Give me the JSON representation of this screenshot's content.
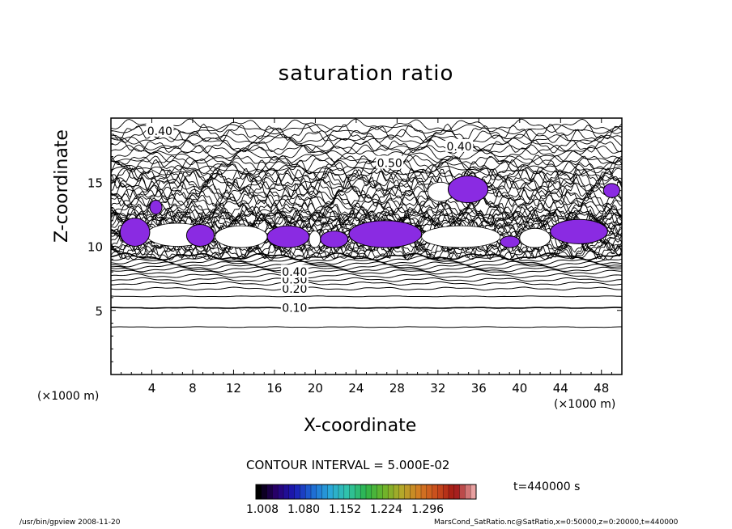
{
  "chart_data": {
    "type": "contour",
    "title": "saturation ratio",
    "xlabel": "X-coordinate",
    "ylabel": "Z-coordinate",
    "x_unit": "(×1000 m)",
    "xlim": [
      0,
      50
    ],
    "ylim": [
      0,
      20
    ],
    "x_ticks": [
      "4",
      "8",
      "12",
      "16",
      "20",
      "24",
      "28",
      "32",
      "36",
      "40",
      "44",
      "48"
    ],
    "y_ticks": [
      "5",
      "10",
      "15"
    ],
    "contour_interval": "CONTOUR INTERVAL = 5.000E-02",
    "contour_labels": [
      {
        "text": "0.40",
        "x": 4.7,
        "z": 19.0
      },
      {
        "text": "0.40",
        "x": 34.0,
        "z": 17.8
      },
      {
        "text": "0.50",
        "x": 27.2,
        "z": 16.5
      },
      {
        "text": "0.10",
        "x": 17.9,
        "z": 5.2
      },
      {
        "text": "0.20",
        "x": 17.9,
        "z": 6.7
      },
      {
        "text": "0.30",
        "x": 17.9,
        "z": 7.4
      },
      {
        "text": "0.40",
        "x": 17.9,
        "z": 8.0
      }
    ],
    "shaded_regions": [
      {
        "x": [
          0.9,
          3.8
        ],
        "z": [
          10.0,
          12.2
        ]
      },
      {
        "x": [
          3.8,
          5.0
        ],
        "z": [
          12.5,
          13.6
        ]
      },
      {
        "x": [
          7.4,
          10.1
        ],
        "z": [
          10.0,
          11.7
        ]
      },
      {
        "x": [
          15.3,
          19.4
        ],
        "z": [
          9.9,
          11.6
        ]
      },
      {
        "x": [
          20.5,
          23.2
        ],
        "z": [
          9.9,
          11.2
        ]
      },
      {
        "x": [
          23.3,
          30.4
        ],
        "z": [
          9.9,
          12.0
        ]
      },
      {
        "x": [
          33.0,
          36.9
        ],
        "z": [
          13.4,
          15.5
        ]
      },
      {
        "x": [
          38.1,
          40.0
        ],
        "z": [
          9.9,
          10.8
        ]
      },
      {
        "x": [
          43.0,
          48.6
        ],
        "z": [
          10.2,
          12.1
        ]
      },
      {
        "x": [
          48.2,
          49.8
        ],
        "z": [
          13.8,
          14.9
        ]
      }
    ],
    "colorbar": {
      "ticks": [
        "1.008",
        "1.080",
        "1.152",
        "1.224",
        "1.296"
      ],
      "colors": [
        "#000000",
        "#2a0070",
        "#1a1ab4",
        "#1e6ad4",
        "#2aa8d8",
        "#30c4a8",
        "#2cb44a",
        "#6cb42a",
        "#b4a82a",
        "#d47a22",
        "#c84a1c",
        "#a01414",
        "#e8a0a0"
      ]
    },
    "time": "t=440000 s",
    "fill_color": "#8a2be2"
  },
  "footer": {
    "left": "/usr/bin/gpview  2008-11-20",
    "right": "MarsCond_SatRatio.nc@SatRatio,x=0:50000,z=0:20000,t=440000"
  }
}
